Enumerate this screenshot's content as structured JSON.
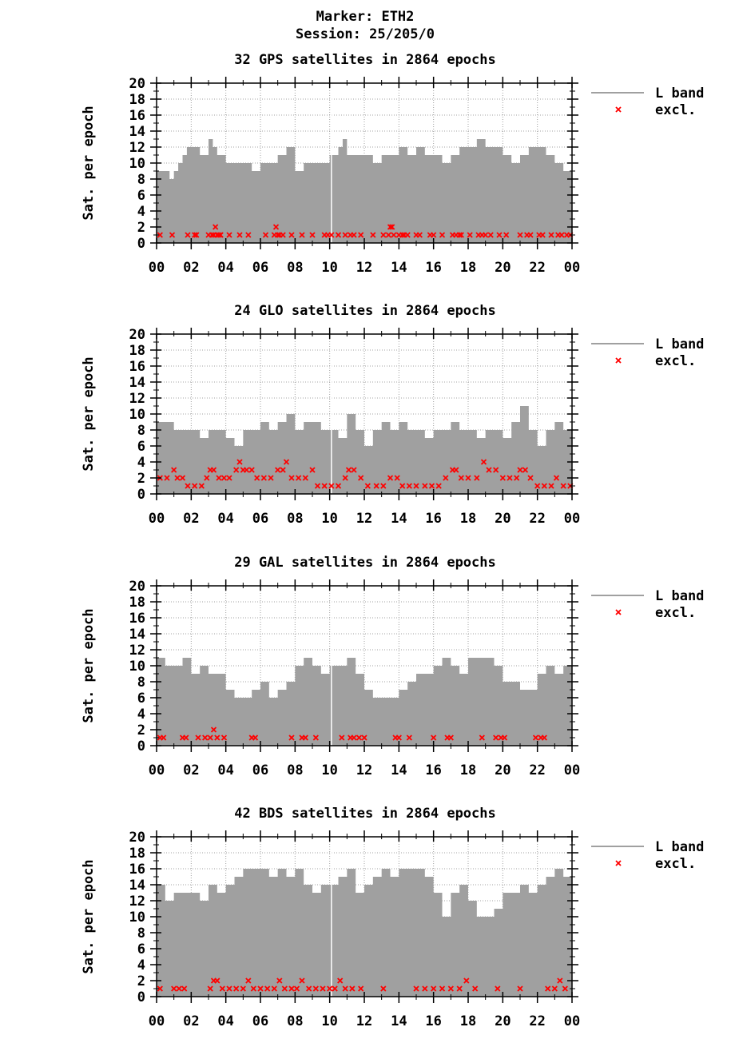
{
  "header": {
    "marker": "Marker: ETH2",
    "session": "Session: 25/205/0"
  },
  "colors": {
    "fill": "#a0a0a0",
    "excl": "#ff0000",
    "grid": "#a0a0a0"
  },
  "chart_data": [
    {
      "type": "area",
      "title": "32 GPS satellites in 2864 epochs",
      "ylabel": "Sat. per epoch",
      "xlabel": "",
      "xlim": [
        0,
        24
      ],
      "ylim": [
        0,
        20
      ],
      "xticks": [
        "00",
        "02",
        "04",
        "06",
        "08",
        "10",
        "12",
        "14",
        "16",
        "18",
        "20",
        "22",
        "00"
      ],
      "yticks": [
        "0",
        "2",
        "4",
        "6",
        "8",
        "10",
        "12",
        "14",
        "16",
        "18",
        "20"
      ],
      "grid": true,
      "legend_position": "right",
      "series": [
        {
          "name": "L band",
          "x": [
            0,
            0.5,
            0.75,
            1,
            1.25,
            1.5,
            1.75,
            2,
            2.5,
            3,
            3.25,
            3.5,
            4,
            4.5,
            5,
            5.5,
            6,
            6.5,
            7,
            7.5,
            8,
            8.5,
            9,
            9.5,
            10,
            10.25,
            10.5,
            10.75,
            11,
            11.5,
            12,
            12.5,
            13,
            13.5,
            14,
            14.5,
            15,
            15.5,
            16,
            16.5,
            17,
            17.5,
            18,
            18.5,
            19,
            19.5,
            20,
            20.5,
            21,
            21.5,
            22,
            22.5,
            23,
            23.5,
            24
          ],
          "y": [
            9,
            9,
            8,
            9,
            10,
            11,
            12,
            12,
            11,
            13,
            12,
            11,
            10,
            10,
            10,
            9,
            10,
            10,
            11,
            12,
            9,
            10,
            10,
            10,
            11,
            11,
            12,
            13,
            11,
            11,
            11,
            10,
            11,
            11,
            12,
            11,
            12,
            11,
            11,
            10,
            11,
            12,
            12,
            13,
            12,
            12,
            11,
            10,
            11,
            12,
            12,
            11,
            10,
            9,
            10
          ]
        },
        {
          "name": "excl.",
          "x": [
            0.2,
            0.9,
            1.8,
            2.2,
            2.3,
            3.0,
            3.2,
            3.3,
            3.4,
            3.5,
            3.6,
            3.7,
            4.2,
            4.8,
            5.3,
            6.3,
            6.8,
            6.9,
            7.0,
            7.1,
            7.3,
            7.8,
            8.4,
            9.0,
            9.7,
            9.9,
            10.1,
            10.5,
            10.9,
            11.2,
            11.4,
            11.8,
            12.5,
            13.1,
            13.4,
            13.5,
            13.6,
            13.7,
            14.0,
            14.2,
            14.3,
            14.5,
            15.0,
            15.2,
            15.8,
            16.0,
            16.5,
            17.1,
            17.3,
            17.5,
            17.6,
            18.1,
            18.6,
            18.8,
            19.0,
            19.3,
            19.8,
            20.2,
            21.0,
            21.4,
            21.6,
            22.1,
            22.3,
            22.8,
            23.2,
            23.4,
            23.7,
            23.9
          ],
          "y": [
            1,
            1,
            1,
            1,
            1,
            1,
            1,
            1,
            2,
            1,
            1,
            1,
            1,
            1,
            1,
            1,
            1,
            2,
            1,
            1,
            1,
            1,
            1,
            1,
            1,
            1,
            1,
            1,
            1,
            1,
            1,
            1,
            1,
            1,
            1,
            2,
            2,
            1,
            1,
            1,
            1,
            1,
            1,
            1,
            1,
            1,
            1,
            1,
            1,
            1,
            1,
            1,
            1,
            1,
            1,
            1,
            1,
            1,
            1,
            1,
            1,
            1,
            1,
            1,
            1,
            1,
            1,
            1
          ]
        }
      ]
    },
    {
      "type": "area",
      "title": "24 GLO satellites in 2864 epochs",
      "ylabel": "Sat. per epoch",
      "xlabel": "",
      "xlim": [
        0,
        24
      ],
      "ylim": [
        0,
        20
      ],
      "xticks": [
        "00",
        "02",
        "04",
        "06",
        "08",
        "10",
        "12",
        "14",
        "16",
        "18",
        "20",
        "22",
        "00"
      ],
      "yticks": [
        "0",
        "2",
        "4",
        "6",
        "8",
        "10",
        "12",
        "14",
        "16",
        "18",
        "20"
      ],
      "grid": true,
      "legend_position": "right",
      "series": [
        {
          "name": "L band",
          "x": [
            0,
            0.5,
            1,
            1.5,
            2,
            2.5,
            3,
            3.5,
            4,
            4.5,
            5,
            5.5,
            6,
            6.5,
            7,
            7.5,
            8,
            8.5,
            9,
            9.5,
            10,
            10.5,
            11,
            11.5,
            12,
            12.5,
            13,
            13.5,
            14,
            14.5,
            15,
            15.5,
            16,
            16.5,
            17,
            17.5,
            18,
            18.5,
            19,
            19.5,
            20,
            20.5,
            21,
            21.5,
            22,
            22.5,
            23,
            23.5,
            24
          ],
          "y": [
            9,
            9,
            8,
            8,
            8,
            7,
            8,
            8,
            7,
            6,
            8,
            8,
            9,
            8,
            9,
            10,
            8,
            9,
            9,
            8,
            8,
            7,
            10,
            8,
            6,
            8,
            9,
            8,
            9,
            8,
            8,
            7,
            8,
            8,
            9,
            8,
            8,
            7,
            8,
            8,
            7,
            9,
            11,
            8,
            6,
            8,
            9,
            8,
            7
          ]
        },
        {
          "name": "excl.",
          "x": [
            0.2,
            0.6,
            1.0,
            1.2,
            1.5,
            1.8,
            2.2,
            2.6,
            2.9,
            3.1,
            3.3,
            3.6,
            3.9,
            4.2,
            4.6,
            4.8,
            5.0,
            5.2,
            5.5,
            5.8,
            6.2,
            6.6,
            7.0,
            7.3,
            7.5,
            7.8,
            8.2,
            8.6,
            9.0,
            9.3,
            9.7,
            10.1,
            10.5,
            10.9,
            11.1,
            11.4,
            11.8,
            12.2,
            12.7,
            13.1,
            13.5,
            13.9,
            14.2,
            14.6,
            15.0,
            15.5,
            15.9,
            16.3,
            16.7,
            17.1,
            17.3,
            17.6,
            18.0,
            18.5,
            18.9,
            19.2,
            19.6,
            20.0,
            20.4,
            20.8,
            21.0,
            21.3,
            21.6,
            22.0,
            22.4,
            22.8,
            23.1,
            23.5,
            23.9
          ],
          "y": [
            2,
            2,
            3,
            2,
            2,
            1,
            1,
            1,
            2,
            3,
            3,
            2,
            2,
            2,
            3,
            4,
            3,
            3,
            3,
            2,
            2,
            2,
            3,
            3,
            4,
            2,
            2,
            2,
            3,
            1,
            1,
            1,
            1,
            2,
            3,
            3,
            2,
            1,
            1,
            1,
            2,
            2,
            1,
            1,
            1,
            1,
            1,
            1,
            2,
            3,
            3,
            2,
            2,
            2,
            4,
            3,
            3,
            2,
            2,
            2,
            3,
            3,
            2,
            1,
            1,
            1,
            2,
            1,
            1
          ]
        }
      ]
    },
    {
      "type": "area",
      "title": "29 GAL satellites in 2864 epochs",
      "ylabel": "Sat. per epoch",
      "xlabel": "",
      "xlim": [
        0,
        24
      ],
      "ylim": [
        0,
        20
      ],
      "xticks": [
        "00",
        "02",
        "04",
        "06",
        "08",
        "10",
        "12",
        "14",
        "16",
        "18",
        "20",
        "22",
        "00"
      ],
      "yticks": [
        "0",
        "2",
        "4",
        "6",
        "8",
        "10",
        "12",
        "14",
        "16",
        "18",
        "20"
      ],
      "grid": true,
      "legend_position": "right",
      "series": [
        {
          "name": "L band",
          "x": [
            0,
            0.5,
            1,
            1.5,
            2,
            2.5,
            3,
            3.5,
            4,
            4.5,
            5,
            5.5,
            6,
            6.5,
            7,
            7.5,
            8,
            8.5,
            9,
            9.5,
            10,
            10.5,
            11,
            11.5,
            12,
            12.5,
            13,
            13.5,
            14,
            14.5,
            15,
            15.5,
            16,
            16.5,
            17,
            17.5,
            18,
            18.5,
            19,
            19.5,
            20,
            20.5,
            21,
            21.5,
            22,
            22.5,
            23,
            23.5,
            24
          ],
          "y": [
            11,
            10,
            10,
            11,
            9,
            10,
            9,
            9,
            7,
            6,
            6,
            7,
            8,
            6,
            7,
            8,
            10,
            11,
            10,
            9,
            10,
            10,
            11,
            9,
            7,
            6,
            6,
            6,
            7,
            8,
            9,
            9,
            10,
            11,
            10,
            9,
            11,
            11,
            11,
            10,
            8,
            8,
            7,
            7,
            9,
            10,
            9,
            10,
            11
          ]
        },
        {
          "name": "excl.",
          "x": [
            0.2,
            0.4,
            1.5,
            1.7,
            2.4,
            2.8,
            3.1,
            3.3,
            3.5,
            3.9,
            5.5,
            5.7,
            7.8,
            8.4,
            8.6,
            9.2,
            10.7,
            11.2,
            11.4,
            11.7,
            12.0,
            13.8,
            14.0,
            14.6,
            16.0,
            16.8,
            17.0,
            18.8,
            19.6,
            19.9,
            20.1,
            21.9,
            22.2,
            22.4
          ],
          "y": [
            1,
            1,
            1,
            1,
            1,
            1,
            1,
            2,
            1,
            1,
            1,
            1,
            1,
            1,
            1,
            1,
            1,
            1,
            1,
            1,
            1,
            1,
            1,
            1,
            1,
            1,
            1,
            1,
            1,
            1,
            1,
            1,
            1,
            1
          ]
        }
      ]
    },
    {
      "type": "area",
      "title": "42 BDS satellites in 2864 epochs",
      "ylabel": "Sat. per epoch",
      "xlabel": "",
      "xlim": [
        0,
        24
      ],
      "ylim": [
        0,
        20
      ],
      "xticks": [
        "00",
        "02",
        "04",
        "06",
        "08",
        "10",
        "12",
        "14",
        "16",
        "18",
        "20",
        "22",
        "00"
      ],
      "yticks": [
        "0",
        "2",
        "4",
        "6",
        "8",
        "10",
        "12",
        "14",
        "16",
        "18",
        "20"
      ],
      "grid": true,
      "legend_position": "right",
      "series": [
        {
          "name": "L band",
          "x": [
            0,
            0.5,
            1,
            1.5,
            2,
            2.5,
            3,
            3.5,
            4,
            4.5,
            5,
            5.5,
            6,
            6.5,
            7,
            7.5,
            8,
            8.5,
            9,
            9.5,
            10,
            10.5,
            11,
            11.5,
            12,
            12.5,
            13,
            13.5,
            14,
            14.5,
            15,
            15.5,
            16,
            16.5,
            17,
            17.5,
            18,
            18.5,
            19,
            19.5,
            20,
            20.5,
            21,
            21.5,
            22,
            22.5,
            23,
            23.5,
            24
          ],
          "y": [
            14,
            12,
            13,
            13,
            13,
            12,
            14,
            13,
            14,
            15,
            16,
            16,
            16,
            15,
            16,
            15,
            16,
            14,
            13,
            14,
            14,
            15,
            16,
            13,
            14,
            15,
            16,
            15,
            16,
            16,
            16,
            15,
            13,
            10,
            13,
            14,
            12,
            10,
            10,
            11,
            13,
            13,
            14,
            13,
            14,
            15,
            16,
            15,
            14
          ]
        },
        {
          "name": "excl.",
          "x": [
            0.2,
            1.0,
            1.3,
            1.6,
            3.1,
            3.3,
            3.5,
            3.8,
            4.2,
            4.6,
            5.0,
            5.3,
            5.6,
            6.0,
            6.4,
            6.8,
            7.1,
            7.4,
            7.8,
            8.1,
            8.4,
            8.8,
            9.2,
            9.6,
            10.0,
            10.3,
            10.6,
            10.9,
            11.3,
            11.8,
            13.1,
            15.0,
            15.5,
            16.0,
            16.5,
            17.0,
            17.5,
            17.9,
            18.4,
            19.7,
            21.0,
            22.6,
            23.0,
            23.3,
            23.6
          ],
          "y": [
            1,
            1,
            1,
            1,
            1,
            2,
            2,
            1,
            1,
            1,
            1,
            2,
            1,
            1,
            1,
            1,
            2,
            1,
            1,
            1,
            2,
            1,
            1,
            1,
            1,
            1,
            2,
            1,
            1,
            1,
            1,
            1,
            1,
            1,
            1,
            1,
            1,
            2,
            1,
            1,
            1,
            1,
            1,
            2,
            1
          ]
        }
      ]
    }
  ]
}
